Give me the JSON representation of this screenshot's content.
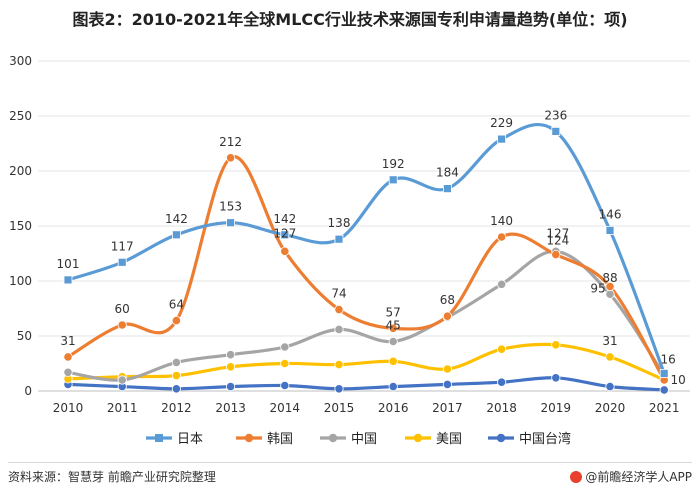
{
  "chart_data": {
    "type": "line",
    "title": "图表2：2010-2021年全球MLCC行业技术来源国专利申请量趋势(单位：项)",
    "categories": [
      "2010",
      "2011",
      "2012",
      "2013",
      "2014",
      "2015",
      "2016",
      "2017",
      "2018",
      "2019",
      "2020",
      "2021"
    ],
    "ylim": [
      0,
      300
    ],
    "yticks": [
      0,
      50,
      100,
      150,
      200,
      250,
      300
    ],
    "series": [
      {
        "name": "日本",
        "color": "#5b9bd5",
        "marker": "square",
        "values": [
          101,
          117,
          142,
          153,
          142,
          138,
          192,
          184,
          229,
          236,
          146,
          16
        ],
        "labels": [
          "101",
          "117",
          "142",
          "153",
          "142",
          "138",
          "192",
          "184",
          "229",
          "236",
          "146",
          "16"
        ]
      },
      {
        "name": "韩国",
        "color": "#ed7d31",
        "marker": "circle",
        "values": [
          31,
          60,
          64,
          212,
          127,
          74,
          57,
          68,
          140,
          124,
          95,
          10
        ],
        "labels": [
          "31",
          "60",
          "64",
          "212",
          "127",
          "74",
          "57",
          "68",
          "140",
          "124",
          "95",
          "10"
        ]
      },
      {
        "name": "中国",
        "color": "#a5a5a5",
        "marker": "circle",
        "values": [
          17,
          10,
          26,
          33,
          40,
          56,
          45,
          67,
          97,
          127,
          88,
          14
        ],
        "labels": [
          "",
          "",
          "",
          "",
          "",
          "",
          "45",
          "",
          "",
          "127",
          "88",
          ""
        ]
      },
      {
        "name": "美国",
        "color": "#ffc000",
        "marker": "circle",
        "values": [
          11,
          13,
          14,
          22,
          25,
          24,
          27,
          20,
          38,
          42,
          31,
          10
        ],
        "labels": [
          "",
          "",
          "",
          "",
          "",
          "",
          "",
          "",
          "",
          "",
          "31",
          ""
        ]
      },
      {
        "name": "中国台湾",
        "color": "#4472c4",
        "marker": "circle",
        "values": [
          6,
          4,
          2,
          4,
          5,
          2,
          4,
          6,
          8,
          12,
          4,
          1
        ],
        "labels": [
          "",
          "",
          "",
          "",
          "",
          "",
          "",
          "",
          "",
          "",
          "",
          ""
        ]
      }
    ]
  },
  "footer": {
    "source": "资料来源：智慧芽 前瞻产业研究院整理",
    "brand": "@前瞻经济学人APP"
  }
}
